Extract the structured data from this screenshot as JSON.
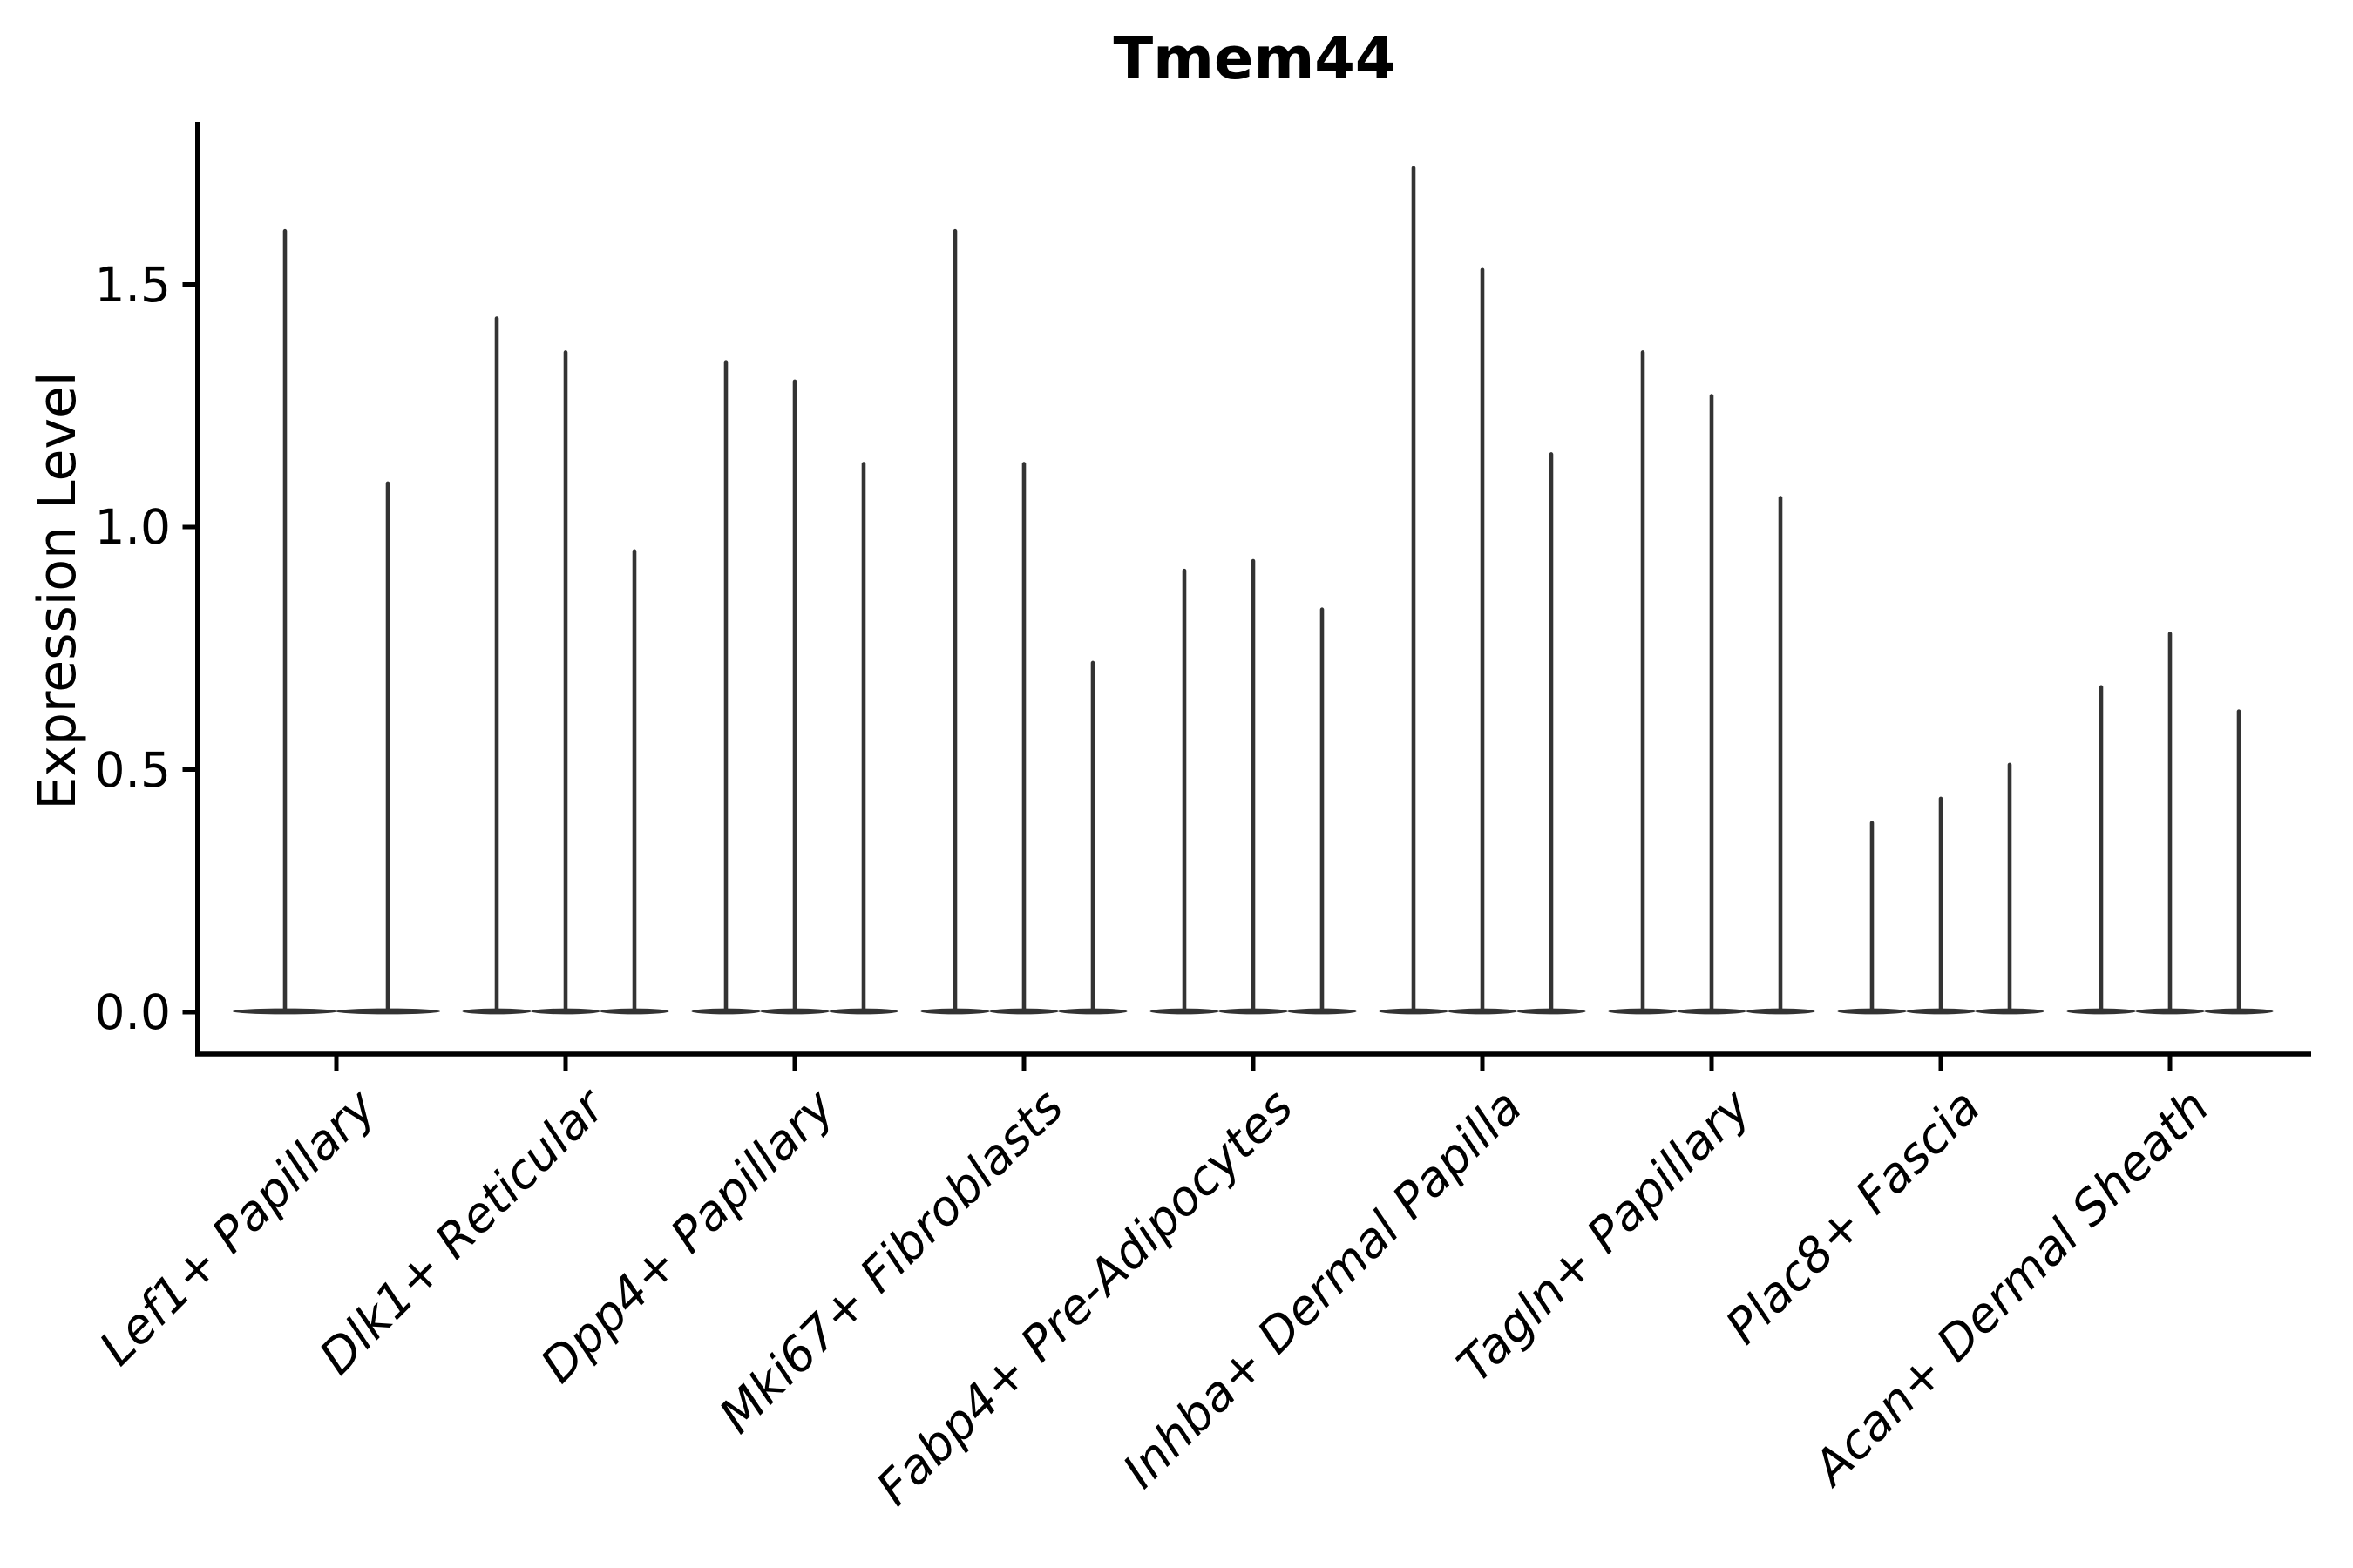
{
  "title": "Tmem44",
  "ylabel": "Expression Level",
  "yticks": [
    {
      "label": "0.0",
      "value": 0.0
    },
    {
      "label": "0.5",
      "value": 0.5
    },
    {
      "label": "1.0",
      "value": 1.0
    },
    {
      "label": "1.5",
      "value": 1.5
    }
  ],
  "chart_data": {
    "type": "violin",
    "title": "Tmem44",
    "xlabel": "",
    "ylabel": "Expression Level",
    "ylim": [
      -0.09,
      1.85
    ],
    "ytick_values": [
      0.0,
      0.5,
      1.0,
      1.5
    ],
    "grid": false,
    "legend": "none",
    "violin_color": "#333333",
    "axis_color": "#000000",
    "description": "Grouped violin plot of gene expression; each cell-type group contains narrow spike-shaped violins (wide flat base at 0, thin spike to max expression).",
    "categories": [
      "Lef1+ Papillary",
      "Dlk1+ Reticular",
      "Dpp4+ Papillary",
      "Mki67+ Fibroblasts",
      "Fabp4+ Pre-Adipocytes",
      "Inhba+ Dermal Papilla",
      "Tagln+ Papillary",
      "Plac8+ Fascia",
      "Acan+ Dermal Sheath"
    ],
    "series": [
      {
        "category": "Lef1+ Papillary",
        "violin_max_values": [
          1.61,
          1.09
        ],
        "baseline_value": 0.0
      },
      {
        "category": "Dlk1+ Reticular",
        "violin_max_values": [
          1.43,
          1.36,
          0.95
        ],
        "baseline_value": 0.0
      },
      {
        "category": "Dpp4+ Papillary",
        "violin_max_values": [
          1.34,
          1.3,
          1.13
        ],
        "baseline_value": 0.0
      },
      {
        "category": "Mki67+ Fibroblasts",
        "violin_max_values": [
          1.61,
          1.13,
          0.72
        ],
        "baseline_value": 0.0
      },
      {
        "category": "Fabp4+ Pre-Adipocytes",
        "violin_max_values": [
          0.91,
          0.93,
          0.83
        ],
        "baseline_value": 0.0
      },
      {
        "category": "Inhba+ Dermal Papilla",
        "violin_max_values": [
          1.74,
          1.53,
          1.15
        ],
        "baseline_value": 0.0
      },
      {
        "category": "Tagln+ Papillary",
        "violin_max_values": [
          1.36,
          1.27,
          1.06
        ],
        "baseline_value": 0.0
      },
      {
        "category": "Plac8+ Fascia",
        "violin_max_values": [
          0.39,
          0.44,
          0.51
        ],
        "baseline_value": 0.0
      },
      {
        "category": "Acan+ Dermal Sheath",
        "violin_max_values": [
          0.67,
          0.78,
          0.62
        ],
        "baseline_value": 0.0
      }
    ]
  }
}
